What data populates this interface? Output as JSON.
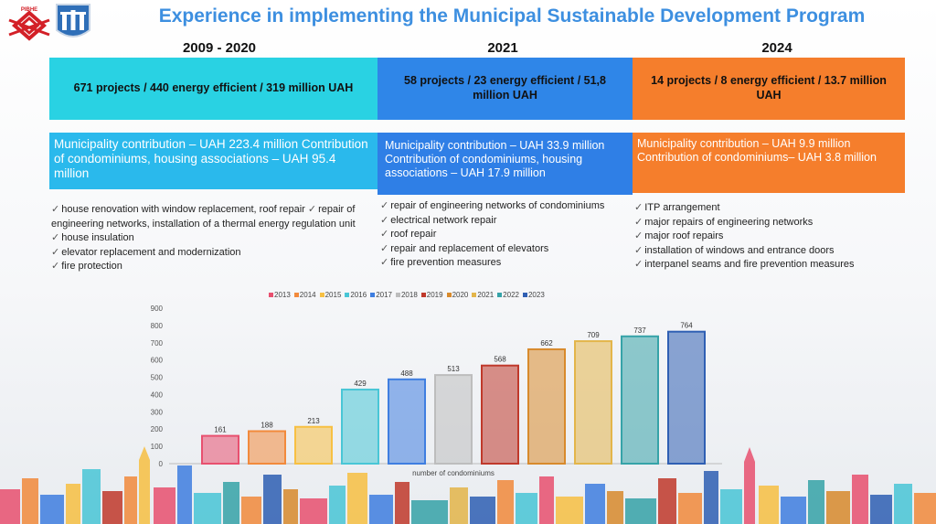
{
  "header": {
    "title": "Experience in implementing the Municipal Sustainable Development Program",
    "logo_text": "РІВНЕ"
  },
  "columns": [
    {
      "year": "2009 - 2020",
      "summary": "671 projects / 440 energy efficient / 319 million UAH",
      "contribution": "Municipality contribution – UAH 223.4 million Contribution of condominiums, housing associations – UAH 95.4 million",
      "items": [
        "house renovation with window replacement, roof repair",
        "repair of engineering networks, installation of a thermal energy regulation unit",
        "house insulation",
        "elevator replacement and modernization",
        "fire protection"
      ],
      "summary_color": "#29d2e3",
      "contrib_color": "#2ab9ec"
    },
    {
      "year": "2021",
      "summary": "58 projects / 23 energy efficient / 51,8 million UAH",
      "contribution": "Municipality contribution – UAH 33.9 million Contribution of condominiums, housing associations – UAH 17.9 million",
      "items": [
        "repair of engineering networks of condominiums",
        "electrical network repair",
        "roof repair",
        "repair and replacement of elevators",
        "fire prevention measures"
      ],
      "summary_color": "#2f86e8",
      "contrib_color": "#2f7fe6"
    },
    {
      "year": "2024",
      "summary": "14 projects / 8 energy efficient / 13.7 million UAH",
      "contribution": "Municipality contribution – UAH 9.9 million Contribution of condominiums– UAH 3.8 million",
      "items": [
        "ITP arrangement",
        "major repairs of engineering networks",
        "major roof repairs",
        "installation of windows and entrance doors",
        "interpanel seams and fire prevention measures"
      ],
      "summary_color": "#f57e2c",
      "contrib_color": "#f57e2c"
    }
  ],
  "chart_data": {
    "type": "bar",
    "categories": [
      "2013",
      "2014",
      "2015",
      "2016",
      "2017",
      "2018",
      "2019",
      "2020",
      "2021",
      "2022",
      "2023"
    ],
    "values": [
      161,
      188,
      213,
      429,
      488,
      513,
      568,
      662,
      709,
      737,
      764
    ],
    "colors": [
      "#e8506f",
      "#f28a3c",
      "#f7c043",
      "#49c6d6",
      "#3f7ee0",
      "#bdbdbd",
      "#c0392b",
      "#d88a2c",
      "#e3b54a",
      "#36a3a8",
      "#2f5fb3"
    ],
    "xlabel": "number of condominiums",
    "ylabel": "",
    "yticks": [
      0,
      100,
      200,
      300,
      400,
      500,
      600,
      700,
      800,
      900
    ],
    "ylim": [
      0,
      900
    ],
    "legend_position": "top",
    "grid": false
  }
}
